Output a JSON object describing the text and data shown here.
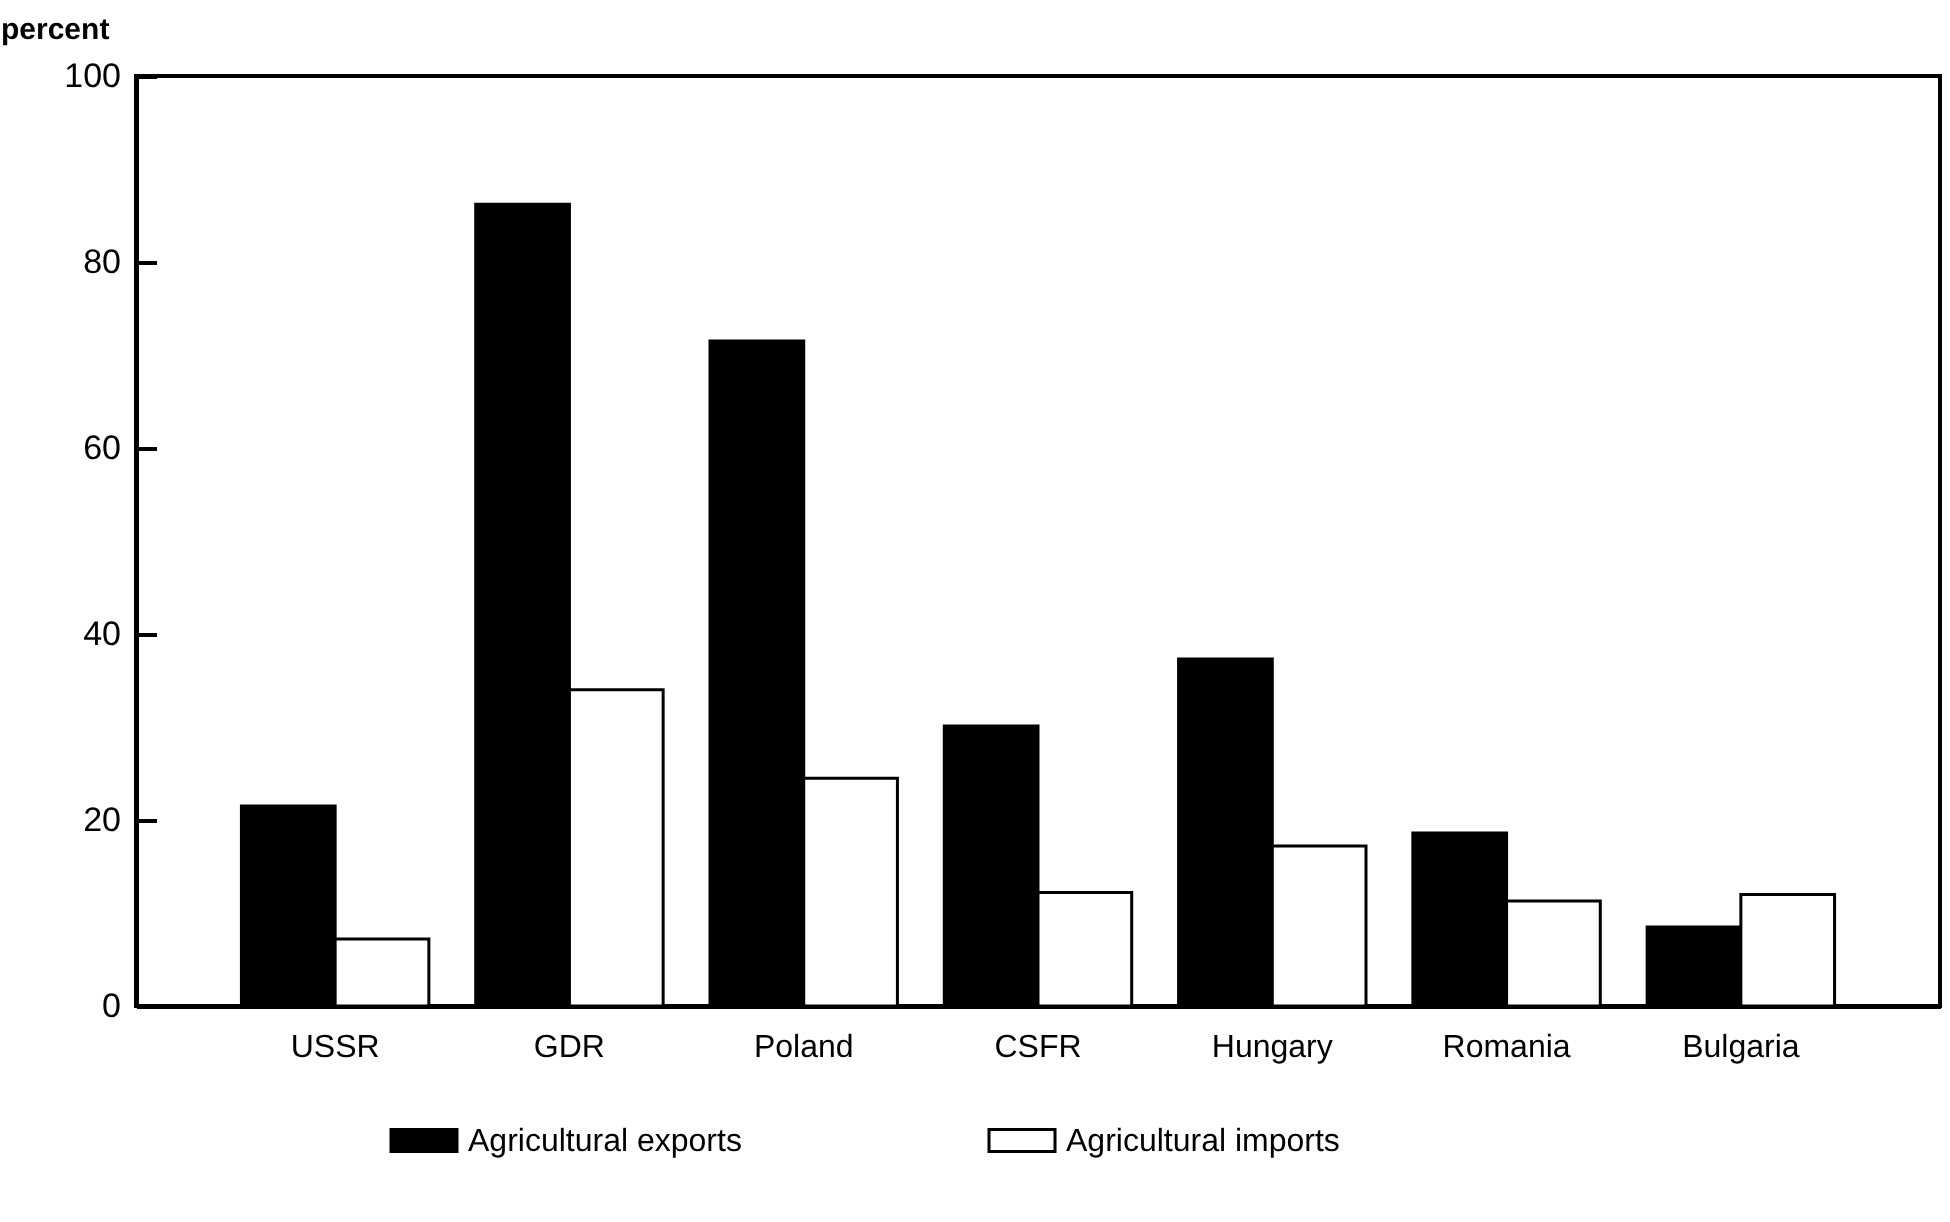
{
  "chart_data": {
    "type": "bar",
    "ylabel": "percent",
    "categories": [
      "USSR",
      "GDR",
      "Poland",
      "CSFR",
      "Hungary",
      "Romania",
      "Bulgaria"
    ],
    "series": [
      {
        "name": "Agricultural exports",
        "color": "#000000",
        "values": [
          21.5,
          86.2,
          71.5,
          30.1,
          37.3,
          18.6,
          8.5
        ]
      },
      {
        "name": "Agricultural imports",
        "color": "#ffffff",
        "values": [
          7.2,
          34.0,
          24.5,
          12.2,
          17.2,
          11.3,
          12.0
        ]
      }
    ],
    "ylim": [
      0,
      100
    ],
    "yticks": [
      0,
      20,
      40,
      60,
      80,
      100
    ],
    "grid": false,
    "legend": "bottom"
  }
}
